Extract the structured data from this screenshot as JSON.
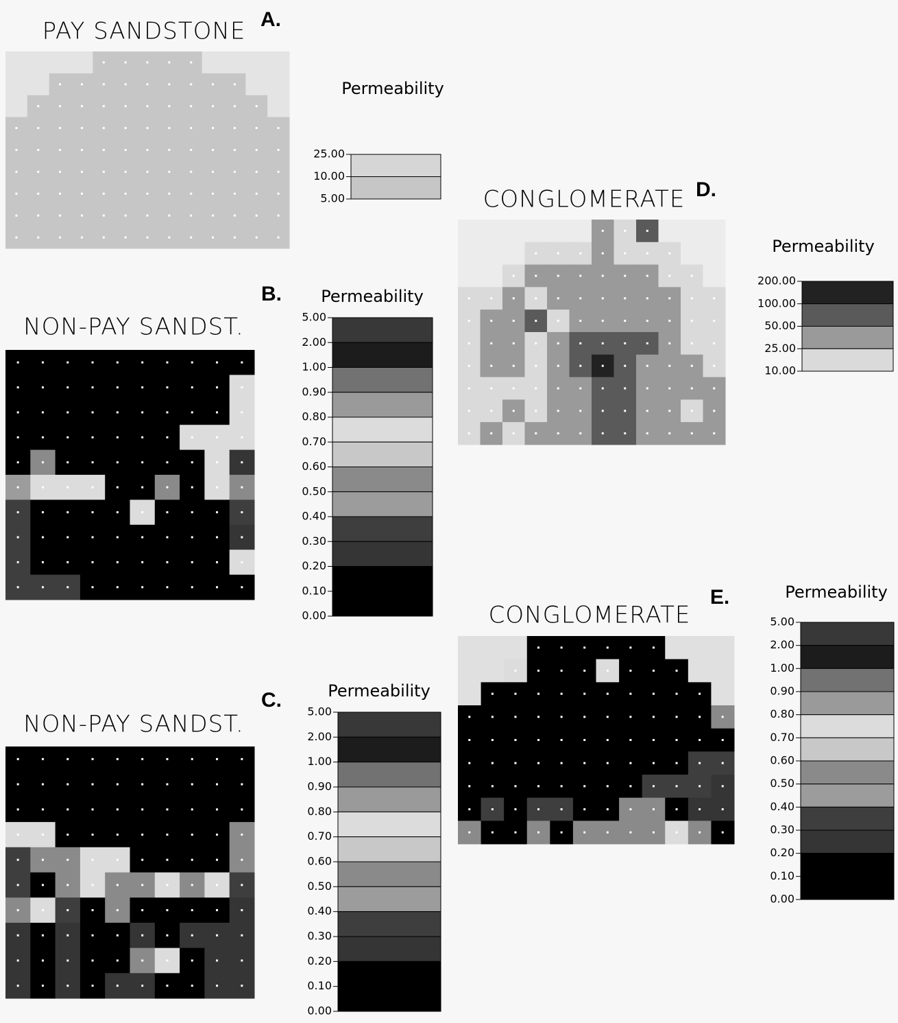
{
  "panels": [
    {
      "letter": "A.",
      "title": "PAY SANDSTONE",
      "legend": {
        "title": "Permeability",
        "ticks": [
          {
            "value": 25,
            "label": "25.00"
          },
          {
            "value": 10,
            "label": "10.00"
          },
          {
            "value": 5,
            "label": "5.00"
          }
        ],
        "colors": [
          "#d6d6d6",
          "#c6c6c6"
        ]
      },
      "outside_color": "#e4e4e4",
      "grid": [
        [
          null,
          null,
          null,
          null,
          1,
          1,
          1,
          1,
          1,
          null,
          null,
          null,
          null
        ],
        [
          null,
          null,
          1,
          1,
          1,
          1,
          1,
          1,
          1,
          1,
          1,
          null,
          null
        ],
        [
          null,
          1,
          1,
          1,
          1,
          1,
          1,
          1,
          1,
          1,
          1,
          1,
          null
        ],
        [
          1,
          1,
          1,
          1,
          1,
          1,
          1,
          1,
          1,
          1,
          1,
          1,
          1
        ],
        [
          1,
          1,
          1,
          1,
          1,
          1,
          1,
          1,
          1,
          1,
          1,
          1,
          1
        ],
        [
          1,
          1,
          1,
          1,
          1,
          1,
          1,
          1,
          1,
          1,
          1,
          1,
          1
        ],
        [
          1,
          1,
          1,
          1,
          1,
          1,
          1,
          1,
          1,
          1,
          1,
          1,
          1
        ],
        [
          1,
          1,
          1,
          1,
          1,
          1,
          1,
          1,
          1,
          1,
          1,
          1,
          1
        ],
        [
          1,
          1,
          1,
          1,
          1,
          1,
          1,
          1,
          1,
          1,
          1,
          1,
          1
        ]
      ]
    },
    {
      "letter": "B.",
      "title": "NON-PAY SANDST.",
      "legend": {
        "title": "Permeability",
        "ticks": [
          {
            "value": 5,
            "label": "5.00"
          },
          {
            "value": 2,
            "label": "2.00"
          },
          {
            "value": 1,
            "label": "1.00"
          },
          {
            "value": 0.9,
            "label": "0.90"
          },
          {
            "value": 0.8,
            "label": "0.80"
          },
          {
            "value": 0.7,
            "label": "0.70"
          },
          {
            "value": 0.6,
            "label": "0.60"
          },
          {
            "value": 0.5,
            "label": "0.50"
          },
          {
            "value": 0.4,
            "label": "0.40"
          },
          {
            "value": 0.3,
            "label": "0.30"
          },
          {
            "value": 0.2,
            "label": "0.20"
          },
          {
            "value": 0.1,
            "label": "0.10"
          },
          {
            "value": 0,
            "label": "0.00"
          }
        ],
        "colors": [
          "#383838",
          "#1c1c1c",
          "#727272",
          "#9a9a9a",
          "#dcdcdc",
          "#c8c8c8",
          "#8a8a8a",
          "#9c9c9c",
          "#3e3e3e",
          "#353535",
          "#000000",
          "#000000"
        ]
      },
      "outside_color": "#e4e4e4",
      "grid": [
        [
          11,
          11,
          11,
          11,
          11,
          11,
          11,
          11,
          11,
          11
        ],
        [
          11,
          11,
          11,
          11,
          11,
          11,
          11,
          11,
          11,
          4
        ],
        [
          11,
          11,
          11,
          11,
          11,
          11,
          11,
          11,
          11,
          4
        ],
        [
          11,
          11,
          11,
          11,
          11,
          11,
          11,
          4,
          4,
          4
        ],
        [
          11,
          6,
          11,
          11,
          11,
          11,
          11,
          11,
          4,
          9
        ],
        [
          7,
          4,
          4,
          4,
          11,
          11,
          6,
          11,
          4,
          6
        ],
        [
          8,
          11,
          11,
          11,
          11,
          4,
          11,
          11,
          11,
          8
        ],
        [
          8,
          11,
          11,
          11,
          11,
          11,
          11,
          11,
          11,
          9
        ],
        [
          8,
          11,
          11,
          11,
          11,
          11,
          11,
          11,
          11,
          4
        ],
        [
          8,
          8,
          8,
          11,
          11,
          11,
          11,
          11,
          11,
          11
        ]
      ]
    },
    {
      "letter": "C.",
      "title": "NON-PAY SANDST.",
      "legend": {
        "title": "Permeability",
        "ticks": [
          {
            "value": 5,
            "label": "5.00"
          },
          {
            "value": 2,
            "label": "2.00"
          },
          {
            "value": 1,
            "label": "1.00"
          },
          {
            "value": 0.9,
            "label": "0.90"
          },
          {
            "value": 0.8,
            "label": "0.80"
          },
          {
            "value": 0.7,
            "label": "0.70"
          },
          {
            "value": 0.6,
            "label": "0.60"
          },
          {
            "value": 0.5,
            "label": "0.50"
          },
          {
            "value": 0.4,
            "label": "0.40"
          },
          {
            "value": 0.3,
            "label": "0.30"
          },
          {
            "value": 0.2,
            "label": "0.20"
          },
          {
            "value": 0.1,
            "label": "0.10"
          },
          {
            "value": 0,
            "label": "0.00"
          }
        ],
        "colors": [
          "#383838",
          "#1c1c1c",
          "#727272",
          "#9a9a9a",
          "#dcdcdc",
          "#c8c8c8",
          "#8a8a8a",
          "#9c9c9c",
          "#3e3e3e",
          "#353535",
          "#000000",
          "#000000"
        ]
      },
      "outside_color": "#e4e4e4",
      "grid": [
        [
          11,
          11,
          11,
          11,
          11,
          11,
          11,
          11,
          11,
          11
        ],
        [
          11,
          11,
          11,
          11,
          11,
          11,
          11,
          11,
          11,
          11
        ],
        [
          11,
          11,
          11,
          11,
          11,
          11,
          11,
          11,
          11,
          11
        ],
        [
          4,
          4,
          11,
          11,
          11,
          11,
          11,
          11,
          11,
          6
        ],
        [
          8,
          6,
          6,
          4,
          4,
          11,
          11,
          11,
          11,
          6
        ],
        [
          8,
          11,
          6,
          4,
          6,
          6,
          4,
          6,
          4,
          8
        ],
        [
          6,
          4,
          8,
          11,
          6,
          11,
          11,
          11,
          11,
          9
        ],
        [
          9,
          11,
          9,
          11,
          11,
          9,
          11,
          9,
          9,
          9
        ],
        [
          9,
          11,
          9,
          11,
          11,
          6,
          4,
          11,
          9,
          9
        ],
        [
          9,
          11,
          9,
          11,
          9,
          9,
          11,
          11,
          9,
          9
        ]
      ]
    },
    {
      "letter": "D.",
      "title": "CONGLOMERATE",
      "legend": {
        "title": "Permeability",
        "ticks": [
          {
            "value": 200,
            "label": "200.00"
          },
          {
            "value": 100,
            "label": "100.00"
          },
          {
            "value": 50,
            "label": "50.00"
          },
          {
            "value": 25,
            "label": "25.00"
          },
          {
            "value": 10,
            "label": "10.00"
          }
        ],
        "colors": [
          "#222222",
          "#5a5a5a",
          "#9a9a9a",
          "#dadada"
        ]
      },
      "outside_color": "#ececec",
      "grid": [
        [
          null,
          null,
          null,
          null,
          null,
          null,
          2,
          3,
          1,
          null,
          null,
          null
        ],
        [
          null,
          null,
          null,
          3,
          3,
          3,
          2,
          3,
          3,
          3,
          null,
          null
        ],
        [
          null,
          null,
          3,
          2,
          2,
          2,
          2,
          2,
          2,
          3,
          3,
          null
        ],
        [
          3,
          3,
          2,
          3,
          2,
          2,
          2,
          2,
          2,
          2,
          3,
          3
        ],
        [
          3,
          2,
          2,
          1,
          3,
          2,
          2,
          2,
          2,
          2,
          3,
          3
        ],
        [
          3,
          2,
          2,
          3,
          2,
          1,
          1,
          1,
          1,
          2,
          3,
          3
        ],
        [
          3,
          2,
          2,
          3,
          2,
          1,
          0,
          1,
          2,
          2,
          2,
          3
        ],
        [
          3,
          3,
          3,
          3,
          2,
          2,
          1,
          1,
          2,
          2,
          2,
          2
        ],
        [
          3,
          3,
          2,
          3,
          2,
          2,
          1,
          1,
          2,
          2,
          3,
          2
        ],
        [
          3,
          2,
          3,
          2,
          2,
          2,
          1,
          1,
          2,
          2,
          2,
          2
        ]
      ]
    },
    {
      "letter": "E.",
      "title": "CONGLOMERATE",
      "legend": {
        "title": "Permeability",
        "ticks": [
          {
            "value": 5,
            "label": "5.00"
          },
          {
            "value": 2,
            "label": "2.00"
          },
          {
            "value": 1,
            "label": "1.00"
          },
          {
            "value": 0.9,
            "label": "0.90"
          },
          {
            "value": 0.8,
            "label": "0.80"
          },
          {
            "value": 0.7,
            "label": "0.70"
          },
          {
            "value": 0.6,
            "label": "0.60"
          },
          {
            "value": 0.5,
            "label": "0.50"
          },
          {
            "value": 0.4,
            "label": "0.40"
          },
          {
            "value": 0.3,
            "label": "0.30"
          },
          {
            "value": 0.2,
            "label": "0.20"
          },
          {
            "value": 0.1,
            "label": "0.10"
          },
          {
            "value": 0,
            "label": "0.00"
          }
        ],
        "colors": [
          "#383838",
          "#1c1c1c",
          "#727272",
          "#9a9a9a",
          "#dcdcdc",
          "#c8c8c8",
          "#8a8a8a",
          "#9c9c9c",
          "#3e3e3e",
          "#353535",
          "#000000",
          "#000000"
        ]
      },
      "outside_color": "#e0e0e0",
      "grid": [
        [
          null,
          null,
          null,
          11,
          11,
          11,
          11,
          11,
          11,
          null,
          null,
          null
        ],
        [
          null,
          null,
          4,
          11,
          11,
          11,
          4,
          11,
          11,
          11,
          null,
          null
        ],
        [
          null,
          11,
          11,
          11,
          11,
          11,
          11,
          11,
          11,
          11,
          11,
          null
        ],
        [
          11,
          11,
          11,
          11,
          11,
          11,
          11,
          11,
          11,
          11,
          11,
          6
        ],
        [
          11,
          11,
          11,
          11,
          11,
          11,
          11,
          11,
          11,
          11,
          11,
          11
        ],
        [
          11,
          11,
          11,
          11,
          11,
          11,
          11,
          11,
          11,
          11,
          8,
          8
        ],
        [
          11,
          11,
          11,
          11,
          11,
          11,
          11,
          11,
          8,
          8,
          8,
          9
        ],
        [
          11,
          8,
          11,
          8,
          8,
          11,
          11,
          6,
          6,
          11,
          9,
          9
        ],
        [
          6,
          11,
          11,
          6,
          11,
          6,
          6,
          6,
          6,
          4,
          6,
          11
        ]
      ]
    }
  ]
}
